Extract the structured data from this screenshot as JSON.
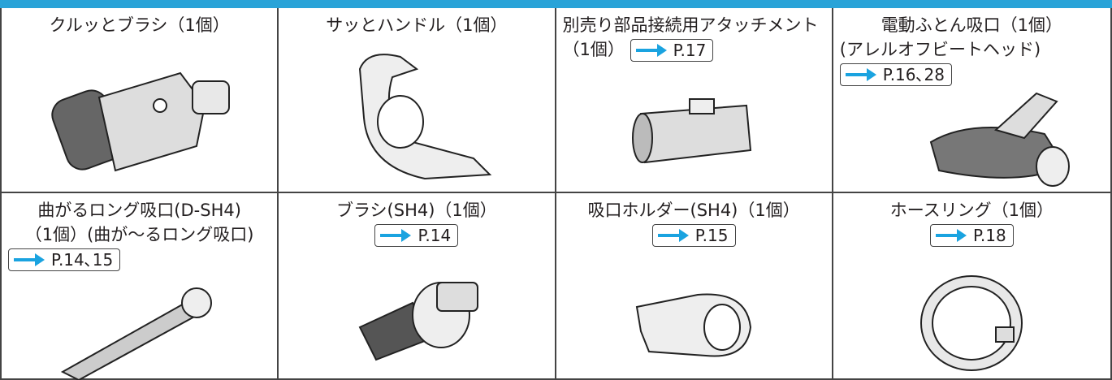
{
  "items": [
    {
      "lines": [
        "クルッとブラシ（1個）"
      ]
    },
    {
      "lines": [
        "サッとハンドル（1個）"
      ]
    },
    {
      "lines": [
        "別売り部品接続用アタッチメント",
        "（1個）"
      ],
      "ref": "P.17"
    },
    {
      "lines": [
        "電動ふとん吸口（1個）",
        "(アレルオフビートヘッド)"
      ],
      "ref": "P.16､28"
    },
    {
      "lines": [
        "曲がるロング吸口(D-SH4)",
        "（1個）(曲が～るロング吸口)"
      ],
      "ref": "P.14､15"
    },
    {
      "lines": [
        "ブラシ(SH4)（1個）"
      ],
      "ref": "P.14"
    },
    {
      "lines": [
        "吸口ホルダー(SH4)（1個）"
      ],
      "ref": "P.15"
    },
    {
      "lines": [
        "ホースリング（1個）"
      ],
      "ref": "P.18"
    }
  ]
}
